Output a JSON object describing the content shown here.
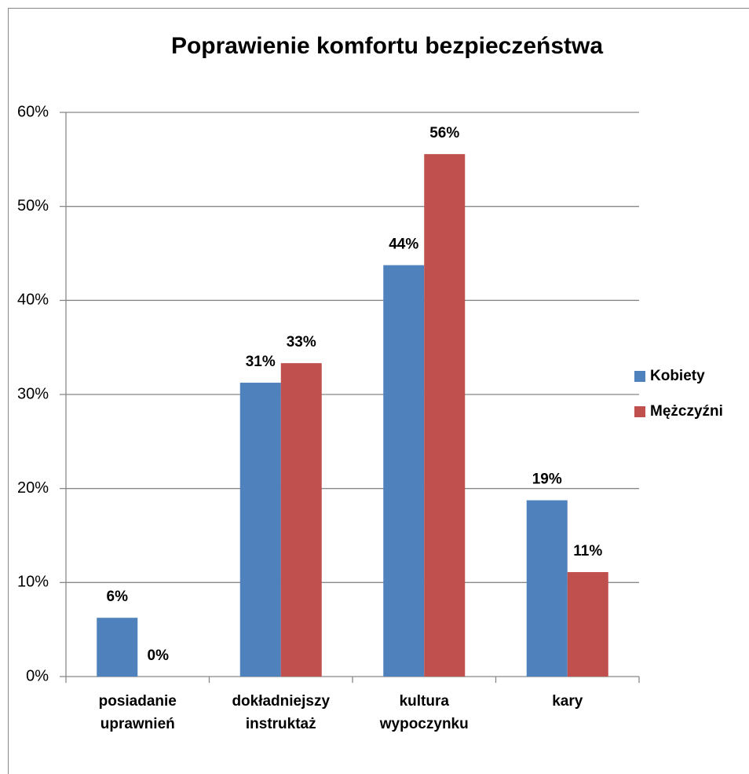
{
  "chart_data": {
    "type": "bar",
    "title": "Poprawienie komfortu bezpieczeństwa",
    "categories": [
      "posiadanie uprawnień",
      "dokładniejszy instruktaż",
      "kultura wypoczynku",
      "kary"
    ],
    "series": [
      {
        "name": "Kobiety",
        "color": "#4f81bd",
        "values": [
          6.25,
          31.25,
          43.75,
          18.75
        ],
        "value_labels": [
          "6%",
          "31%",
          "44%",
          "19%"
        ]
      },
      {
        "name": "Mężczyźni",
        "color": "#c0504d",
        "values": [
          0,
          33.33,
          55.56,
          11.11
        ],
        "value_labels": [
          "0%",
          "33%",
          "56%",
          "11%"
        ]
      }
    ],
    "ylim": [
      0,
      60
    ],
    "yticks": [
      {
        "value": 0,
        "label": "0%"
      },
      {
        "value": 10,
        "label": "10%"
      },
      {
        "value": 20,
        "label": "20%"
      },
      {
        "value": 30,
        "label": "30%"
      },
      {
        "value": 40,
        "label": "40%"
      },
      {
        "value": 50,
        "label": "50%"
      },
      {
        "value": 60,
        "label": "60%"
      }
    ],
    "grid": true,
    "legend": "right"
  }
}
